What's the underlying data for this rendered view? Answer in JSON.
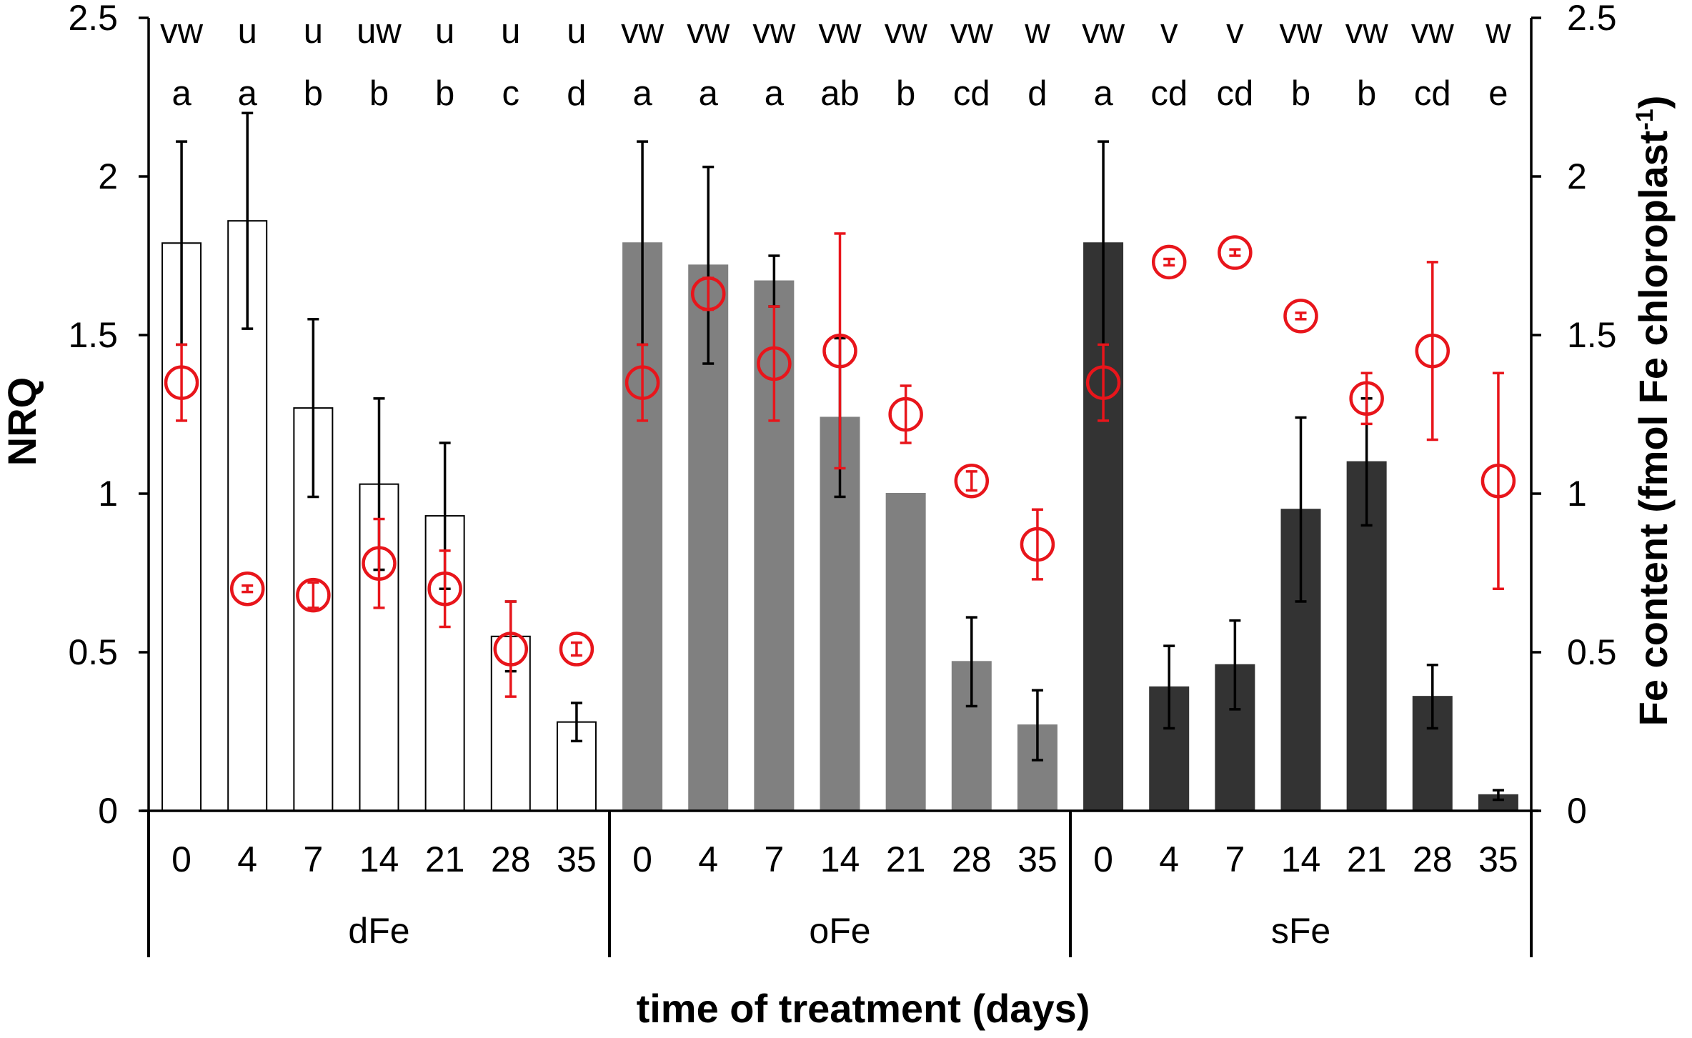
{
  "chart_data": {
    "type": "bar",
    "title": "",
    "xlabel": "time of treatment (days)",
    "ylabel": "NRQ",
    "y2label": "Fe content (fmol Fe chloroplast",
    "y2label_sup": "-1",
    "y2label_close": ")",
    "ylim": [
      0,
      2.5
    ],
    "y2lim": [
      0,
      2.5
    ],
    "yticks": [
      "0",
      "0.5",
      "1",
      "1.5",
      "2",
      "2.5"
    ],
    "y2ticks": [
      "0",
      "0.5",
      "1",
      "1.5",
      "2",
      "2.5"
    ],
    "groups": [
      {
        "name": "dFe",
        "days": [
          "0",
          "4",
          "7",
          "14",
          "21",
          "28",
          "35"
        ],
        "nrq": [
          1.79,
          1.86,
          1.27,
          1.03,
          0.93,
          0.55,
          0.28
        ],
        "nrq_err": [
          0.32,
          0.34,
          0.28,
          0.27,
          0.23,
          0.11,
          0.06
        ],
        "fe": [
          1.35,
          0.7,
          0.68,
          0.78,
          0.7,
          0.51,
          0.51
        ],
        "fe_err": [
          0.12,
          0.01,
          0.04,
          0.14,
          0.12,
          0.15,
          0.02
        ],
        "letters_top": [
          "vw",
          "u",
          "u",
          "uw",
          "u",
          "u",
          "u"
        ],
        "letters_bottom": [
          "a",
          "a",
          "b",
          "b",
          "b",
          "c",
          "d"
        ],
        "bar_fill": "#ffffff",
        "bar_stroke": "#000000"
      },
      {
        "name": "oFe",
        "days": [
          "0",
          "4",
          "7",
          "14",
          "21",
          "28",
          "35"
        ],
        "nrq": [
          1.79,
          1.72,
          1.67,
          1.24,
          1.0,
          0.47,
          0.27
        ],
        "nrq_err": [
          0.32,
          0.31,
          0.08,
          0.25,
          0.0,
          0.14,
          0.11
        ],
        "fe": [
          1.35,
          1.63,
          1.41,
          1.45,
          1.25,
          1.04,
          0.84
        ],
        "fe_err": [
          0.12,
          0.05,
          0.18,
          0.37,
          0.09,
          0.03,
          0.11
        ],
        "letters_top": [
          "vw",
          "vw",
          "vw",
          "vw",
          "vw",
          "vw",
          "w"
        ],
        "letters_bottom": [
          "a",
          "a",
          "a",
          "ab",
          "b",
          "cd",
          "d"
        ],
        "bar_fill": "#808080",
        "bar_stroke": "#808080"
      },
      {
        "name": "sFe",
        "days": [
          "0",
          "4",
          "7",
          "14",
          "21",
          "28",
          "35"
        ],
        "nrq": [
          1.79,
          0.39,
          0.46,
          0.95,
          1.1,
          0.36,
          0.05
        ],
        "nrq_err": [
          0.32,
          0.13,
          0.14,
          0.29,
          0.2,
          0.1,
          0.015
        ],
        "fe": [
          1.35,
          1.73,
          1.76,
          1.56,
          1.3,
          1.45,
          1.04
        ],
        "fe_err": [
          0.12,
          0.01,
          0.01,
          0.01,
          0.08,
          0.28,
          0.34
        ],
        "letters_top": [
          "vw",
          "v",
          "v",
          "vw",
          "vw",
          "vw",
          "w"
        ],
        "letters_bottom": [
          "a",
          "cd",
          "cd",
          "b",
          "b",
          "cd",
          "e"
        ],
        "bar_fill": "#333333",
        "bar_stroke": "#333333"
      }
    ],
    "colors": {
      "fe_marker": "#e8151b",
      "axis": "#000000"
    }
  }
}
